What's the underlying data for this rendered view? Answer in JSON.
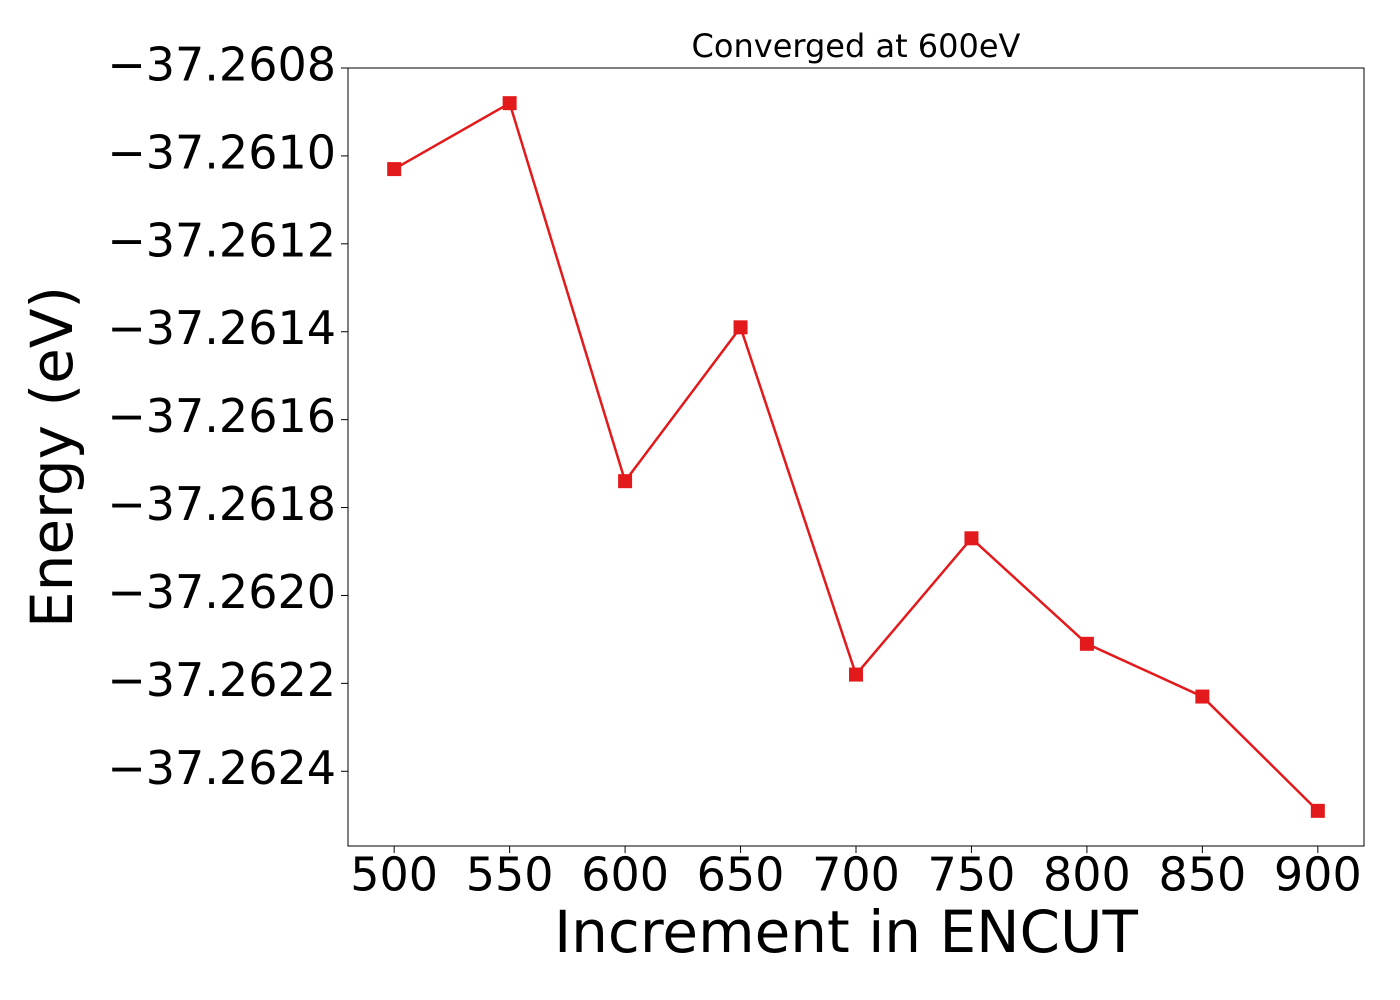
{
  "chart_data": {
    "type": "line",
    "title": "Converged at 600eV",
    "x_label": "Increment in ENCUT",
    "y_label": "Energy (eV)",
    "x": [
      500,
      550,
      600,
      650,
      700,
      750,
      800,
      850,
      900
    ],
    "series": [
      {
        "color": "#e31a1c",
        "marker": "square",
        "values": [
          -37.26103,
          -37.26088,
          -37.26174,
          -37.26139,
          -37.26218,
          -37.26187,
          -37.26211,
          -37.26223,
          -37.26249
        ]
      }
    ],
    "xlim": [
      480,
      920
    ],
    "ylim": [
      -37.26257,
      -37.2608
    ],
    "xticks": [
      500,
      550,
      600,
      650,
      700,
      750,
      800,
      850,
      900
    ],
    "yticks": [
      {
        "value": -37.2608,
        "label": "−37.2608"
      },
      {
        "value": -37.261,
        "label": "−37.2610"
      },
      {
        "value": -37.2612,
        "label": "−37.2612"
      },
      {
        "value": -37.2614,
        "label": "−37.2614"
      },
      {
        "value": -37.2616,
        "label": "−37.2616"
      },
      {
        "value": -37.2618,
        "label": "−37.2618"
      },
      {
        "value": -37.262,
        "label": "−37.2620"
      },
      {
        "value": -37.2622,
        "label": "−37.2622"
      },
      {
        "value": -37.2624,
        "label": "−37.2624"
      }
    ],
    "grid": false
  }
}
